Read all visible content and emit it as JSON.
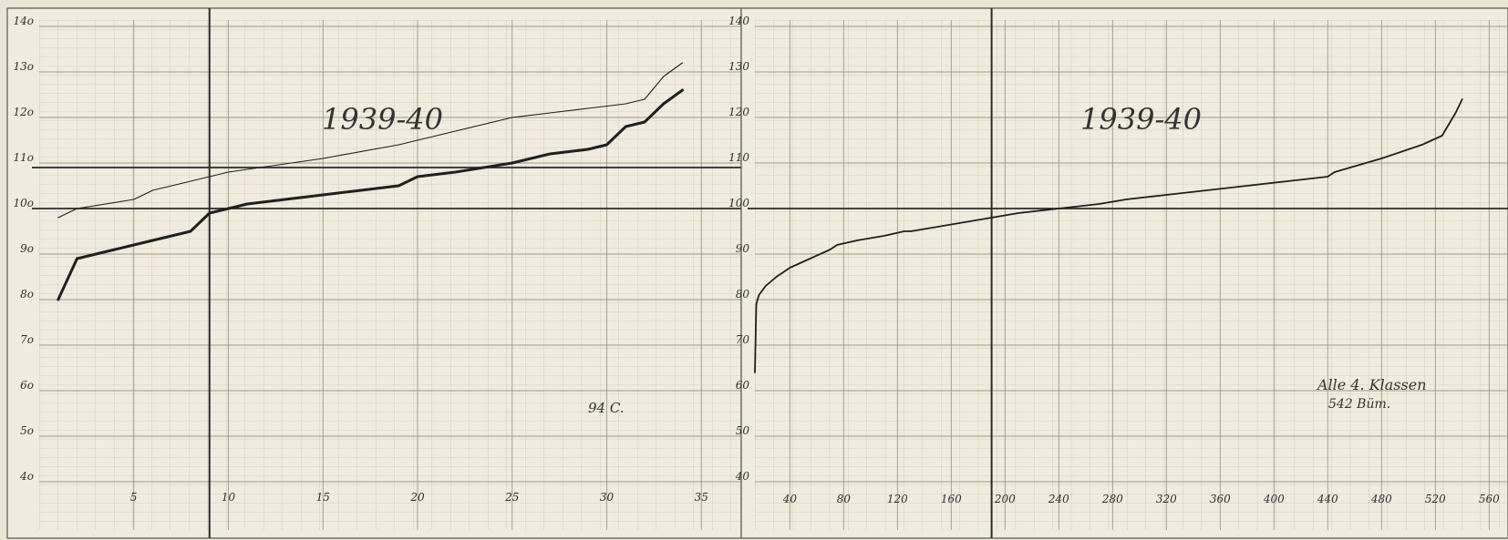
{
  "chart_data": [
    {
      "type": "line",
      "title": "1939-40",
      "annotation": "94 C.",
      "xlim": [
        0,
        36
      ],
      "ylim": [
        40,
        140
      ],
      "x_ticks": [
        "5",
        "10",
        "15",
        "20",
        "25",
        "30",
        "35"
      ],
      "x_tick_values": [
        5,
        10,
        15,
        20,
        25,
        30,
        35
      ],
      "y_ticks": [
        "4o",
        "5o",
        "6o",
        "7o",
        "8o",
        "9o",
        "10o",
        "11o",
        "12o",
        "13o",
        "14o"
      ],
      "y_tick_values": [
        40,
        50,
        60,
        70,
        80,
        90,
        100,
        110,
        120,
        130,
        140
      ],
      "reference_lines": {
        "x": [
          9
        ],
        "y": [
          100,
          109
        ]
      },
      "grid": true,
      "series": [
        {
          "style": "thin",
          "x": [
            1,
            2,
            5,
            6,
            10,
            15,
            19,
            22,
            25,
            27,
            29,
            31,
            32,
            33,
            34
          ],
          "y": [
            98,
            100,
            102,
            104,
            108,
            111,
            114,
            117,
            120,
            121,
            122,
            123,
            124,
            129,
            132
          ]
        },
        {
          "style": "thick",
          "x": [
            1,
            2,
            4,
            5,
            6,
            7,
            8,
            9,
            10,
            11,
            13,
            15,
            17,
            19,
            20,
            22,
            25,
            27,
            29,
            30,
            31,
            32,
            33,
            34
          ],
          "y": [
            80,
            89,
            91,
            92,
            93,
            94,
            95,
            99,
            100,
            101,
            102,
            103,
            104,
            105,
            107,
            108,
            110,
            112,
            113,
            114,
            118,
            119,
            123,
            126
          ]
        }
      ]
    },
    {
      "type": "line",
      "title": "1939-40",
      "annotation_lines": [
        "Alle 4. Klassen",
        "542 Büm."
      ],
      "xlim": [
        14,
        574
      ],
      "ylim": [
        40,
        140
      ],
      "x_ticks": [
        "40",
        "80",
        "120",
        "160",
        "200",
        "240",
        "280",
        "320",
        "360",
        "400",
        "440",
        "480",
        "520",
        "560"
      ],
      "x_tick_values": [
        40,
        80,
        120,
        160,
        200,
        240,
        280,
        320,
        360,
        400,
        440,
        480,
        520,
        560
      ],
      "y_ticks": [
        "40",
        "50",
        "60",
        "70",
        "80",
        "90",
        "100",
        "110",
        "120",
        "130",
        "140"
      ],
      "y_tick_values": [
        40,
        50,
        60,
        70,
        80,
        90,
        100,
        110,
        120,
        130,
        140
      ],
      "reference_lines": {
        "x": [
          190
        ],
        "y": [
          100
        ]
      },
      "grid": true,
      "series": [
        {
          "style": "normal",
          "x": [
            14,
            15,
            17,
            22,
            30,
            40,
            55,
            70,
            75,
            90,
            110,
            125,
            130,
            150,
            170,
            190,
            210,
            240,
            270,
            290,
            320,
            350,
            380,
            410,
            440,
            445,
            480,
            510,
            525,
            535,
            540
          ],
          "y": [
            64,
            79,
            81,
            83,
            85,
            87,
            89,
            91,
            92,
            93,
            94,
            95,
            95,
            96,
            97,
            98,
            99,
            100,
            101,
            102,
            103,
            104,
            105,
            106,
            107,
            108,
            111,
            114,
            116,
            121,
            124
          ]
        }
      ]
    }
  ]
}
